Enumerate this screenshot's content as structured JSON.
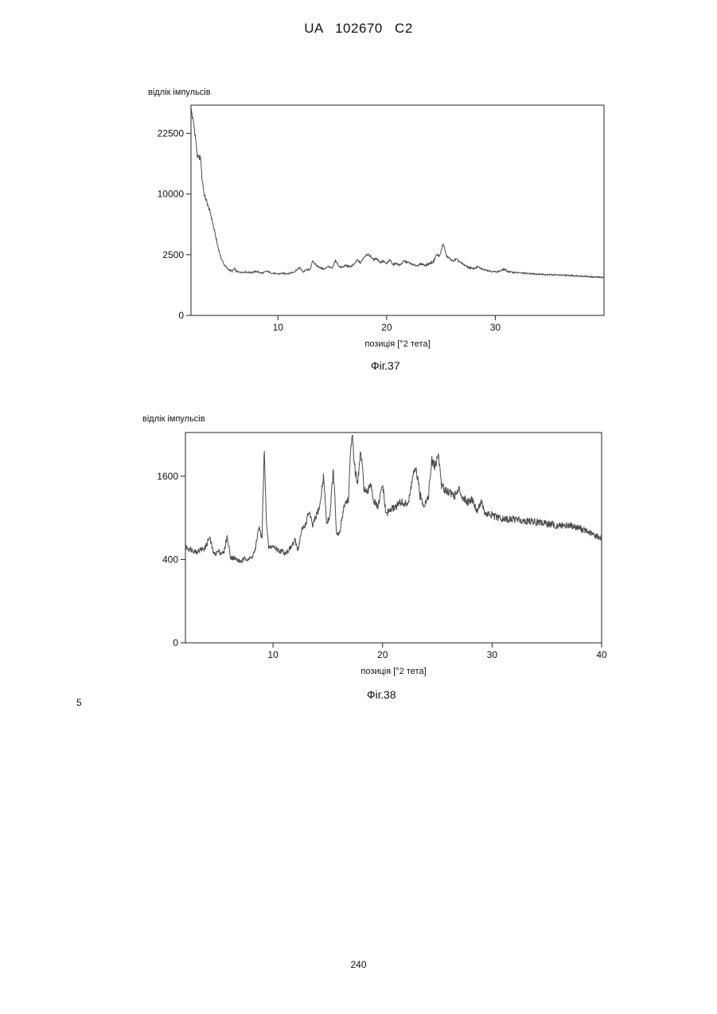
{
  "header": "UA 102670 C2",
  "margin_number": "5",
  "page_number": "240",
  "chart_data": [
    {
      "type": "line",
      "caption": "Фіг.37",
      "ylabel": "відлік імпульсів",
      "xlabel": "позиція [°2 тета]",
      "xlim": [
        2,
        40
      ],
      "x_ticks": [
        10,
        20,
        30
      ],
      "y_ticks": [
        0,
        2500,
        10000,
        22500
      ],
      "y_scale": "sqrt",
      "ylim": [
        0,
        30000
      ],
      "grid": false,
      "color": "#4a4a4a",
      "series": [
        {
          "x": [
            2.0,
            2.3,
            2.6,
            2.9,
            3.0,
            3.2,
            3.5,
            3.8,
            4.1,
            4.4,
            4.7,
            5.0,
            5.4,
            5.8,
            6.0,
            6.2,
            6.6,
            7.0,
            7.5,
            8.0,
            8.5,
            9.0,
            9.5,
            10.0,
            10.5,
            11.0,
            11.5,
            12.0,
            12.3,
            12.6,
            13.0,
            13.2,
            13.5,
            13.8,
            14.0,
            14.3,
            14.6,
            15.0,
            15.3,
            15.6,
            15.9,
            16.2,
            16.6,
            17.0,
            17.3,
            17.6,
            17.9,
            18.2,
            18.5,
            18.8,
            19.1,
            19.4,
            19.7,
            20.0,
            20.3,
            20.6,
            20.9,
            21.2,
            21.6,
            22.0,
            22.4,
            22.8,
            23.2,
            23.6,
            24.0,
            24.3,
            24.6,
            24.9,
            25.2,
            25.5,
            25.8,
            26.1,
            26.4,
            26.8,
            27.2,
            27.6,
            28.0,
            28.4,
            28.8,
            29.2,
            29.6,
            30.0,
            30.4,
            30.8,
            31.2,
            31.6,
            32.0,
            33.0,
            34.0,
            35.0,
            36.0,
            37.0,
            38.0,
            39.0,
            40.0
          ],
          "y": [
            29000,
            24000,
            17000,
            16800,
            13000,
            10000,
            8500,
            7000,
            5200,
            3500,
            2400,
            1800,
            1450,
            1320,
            1500,
            1300,
            1260,
            1280,
            1240,
            1320,
            1210,
            1320,
            1200,
            1170,
            1200,
            1190,
            1290,
            1550,
            1280,
            1400,
            1450,
            2050,
            1700,
            1600,
            1500,
            1450,
            1650,
            1480,
            2050,
            1650,
            1550,
            1700,
            1600,
            1750,
            2100,
            1850,
            2300,
            2550,
            2400,
            2100,
            2200,
            1900,
            2000,
            1800,
            2100,
            1750,
            1850,
            1700,
            2000,
            1900,
            1750,
            1680,
            1800,
            1700,
            1850,
            1950,
            2500,
            2400,
            3500,
            2400,
            2200,
            2000,
            2150,
            1900,
            1700,
            1550,
            1480,
            1600,
            1450,
            1400,
            1320,
            1290,
            1330,
            1450,
            1300,
            1260,
            1240,
            1190,
            1160,
            1130,
            1100,
            1080,
            1050,
            1000,
            980
          ]
        }
      ]
    },
    {
      "type": "line",
      "caption": "Фіг.38",
      "ylabel": "відлік імпульсів",
      "xlabel": "позиція [°2 тета]",
      "xlim": [
        2,
        40
      ],
      "x_ticks": [
        10,
        20,
        30,
        40
      ],
      "y_ticks": [
        0,
        400,
        1600
      ],
      "y_scale": "sqrt",
      "ylim": [
        0,
        2550
      ],
      "grid": false,
      "color": "#4a4a4a",
      "series": [
        {
          "x": [
            2.0,
            3.0,
            3.8,
            4.2,
            4.6,
            5.0,
            5.5,
            5.8,
            6.1,
            6.5,
            7.0,
            7.5,
            8.0,
            8.4,
            8.7,
            9.0,
            9.2,
            9.4,
            9.6,
            10.0,
            10.4,
            10.8,
            11.2,
            11.6,
            12.0,
            12.3,
            12.6,
            13.0,
            13.3,
            13.6,
            14.0,
            14.3,
            14.6,
            14.9,
            15.2,
            15.5,
            15.8,
            16.1,
            16.5,
            16.9,
            17.2,
            17.4,
            17.7,
            18.0,
            18.3,
            18.6,
            18.9,
            19.2,
            19.6,
            20.0,
            20.3,
            20.6,
            21.0,
            21.4,
            21.7,
            22.0,
            22.4,
            22.8,
            23.1,
            23.4,
            23.8,
            24.2,
            24.5,
            24.8,
            25.1,
            25.4,
            25.8,
            26.2,
            26.6,
            27.0,
            27.4,
            27.8,
            28.2,
            28.6,
            29.0,
            29.4,
            29.8,
            30.5,
            31.0,
            32.0,
            33.0,
            34.0,
            35.0,
            36.0,
            37.0,
            38.0,
            39.0,
            40.0
          ],
          "y": [
            530,
            480,
            520,
            640,
            450,
            480,
            460,
            650,
            430,
            410,
            380,
            410,
            410,
            500,
            780,
            620,
            2100,
            800,
            520,
            540,
            500,
            480,
            470,
            520,
            600,
            500,
            720,
            820,
            1000,
            780,
            950,
            1100,
            1600,
            800,
            950,
            1700,
            650,
            700,
            1100,
            1200,
            2600,
            1900,
            1400,
            2100,
            1400,
            1250,
            1500,
            1150,
            1050,
            1450,
            950,
            1000,
            1050,
            1100,
            1150,
            1100,
            1150,
            1650,
            1700,
            1250,
            1100,
            1250,
            1900,
            1800,
            2050,
            1400,
            1350,
            1300,
            1250,
            1350,
            1200,
            1150,
            1200,
            1000,
            1150,
            950,
            950,
            900,
            880,
            880,
            860,
            840,
            820,
            790,
            800,
            760,
            690,
            630
          ]
        }
      ]
    }
  ]
}
